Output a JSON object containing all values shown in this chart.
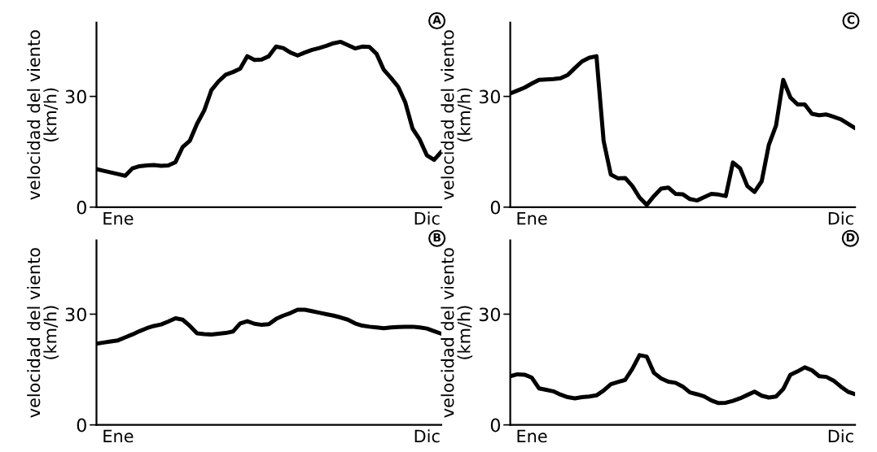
{
  "chart_data": [
    {
      "type": "line",
      "ylabel": "velocidad del viento\n(km/h)",
      "annotations": [
        "A"
      ],
      "categories": [
        null,
        null,
        null,
        "Ene",
        null,
        null,
        null,
        null,
        null,
        null,
        null,
        null,
        null,
        null,
        null,
        null,
        null,
        null,
        null,
        null,
        null,
        null,
        null,
        null,
        null,
        null,
        null,
        null,
        null,
        null,
        null,
        null,
        null,
        null,
        null,
        null,
        null,
        null,
        null,
        null,
        null,
        null,
        null,
        null,
        null,
        null,
        "Dic",
        null,
        null
      ],
      "ylim": [
        0,
        50
      ],
      "yticks": [
        0,
        30
      ],
      "series": [
        {
          "color": "#000000",
          "values": [
            10.3,
            9.85,
            9.4,
            8.95,
            8.5,
            10.5,
            11.1,
            11.3,
            11.4,
            11.2,
            11.3,
            12.2,
            16.3,
            18.0,
            22.6,
            26.2,
            31.7,
            34.1,
            35.9,
            36.6,
            37.5,
            40.9,
            39.9,
            40.0,
            40.9,
            43.5,
            43.1,
            41.9,
            41.1,
            41.9,
            42.6,
            43.1,
            43.7,
            44.4,
            44.8,
            43.9,
            43.0,
            43.5,
            43.4,
            41.5,
            37.2,
            35.0,
            32.6,
            28.3,
            21.3,
            18.3,
            14.0,
            12.8,
            15.0
          ]
        }
      ]
    },
    {
      "type": "line",
      "ylabel": "velocidad del viento\n(km/h)",
      "annotations": [
        "C"
      ],
      "categories": [
        null,
        null,
        null,
        "Ene",
        null,
        null,
        null,
        null,
        null,
        null,
        null,
        null,
        null,
        null,
        null,
        null,
        null,
        null,
        null,
        null,
        null,
        null,
        null,
        null,
        null,
        null,
        null,
        null,
        null,
        null,
        null,
        null,
        null,
        null,
        null,
        null,
        null,
        null,
        null,
        null,
        null,
        null,
        null,
        null,
        null,
        null,
        "Dic",
        null,
        null
      ],
      "ylim": [
        0,
        50
      ],
      "yticks": [
        0,
        30
      ],
      "series": [
        {
          "color": "#000000",
          "values": [
            30.8,
            31.6,
            32.4,
            33.5,
            34.5,
            34.6,
            34.7,
            34.9,
            35.8,
            37.7,
            39.5,
            40.5,
            40.9,
            17.9,
            8.8,
            7.8,
            7.9,
            5.7,
            2.6,
            0.6,
            3.0,
            5.0,
            5.3,
            3.6,
            3.5,
            2.2,
            1.8,
            2.7,
            3.6,
            3.4,
            3.0,
            12.1,
            10.5,
            5.7,
            4.1,
            7.0,
            16.9,
            22.1,
            34.5,
            29.7,
            27.8,
            27.8,
            25.3,
            24.9,
            25.1,
            24.5,
            23.8,
            22.6,
            21.4
          ]
        }
      ]
    },
    {
      "type": "line",
      "ylabel": "velocidad del viento\n(km/h)",
      "annotations": [
        "B"
      ],
      "categories": [
        null,
        null,
        null,
        "Ene",
        null,
        null,
        null,
        null,
        null,
        null,
        null,
        null,
        null,
        null,
        null,
        null,
        null,
        null,
        null,
        null,
        null,
        null,
        null,
        null,
        null,
        null,
        null,
        null,
        null,
        null,
        null,
        null,
        null,
        null,
        null,
        null,
        null,
        null,
        null,
        null,
        null,
        null,
        null,
        null,
        null,
        null,
        "Dic",
        null,
        null
      ],
      "ylim": [
        0,
        50
      ],
      "yticks": [
        0,
        30
      ],
      "series": [
        {
          "color": "#000000",
          "values": [
            22.0,
            22.3,
            22.6,
            22.9,
            23.7,
            24.5,
            25.4,
            26.2,
            26.8,
            27.2,
            28.0,
            28.9,
            28.5,
            26.8,
            24.8,
            24.6,
            24.5,
            24.7,
            24.9,
            25.3,
            27.5,
            28.1,
            27.4,
            27.1,
            27.3,
            28.7,
            29.6,
            30.3,
            31.2,
            31.2,
            30.8,
            30.4,
            30.0,
            29.6,
            29.1,
            28.5,
            27.5,
            26.9,
            26.6,
            26.4,
            26.2,
            26.4,
            26.5,
            26.6,
            26.6,
            26.4,
            26.1,
            25.4,
            24.7
          ]
        }
      ]
    },
    {
      "type": "line",
      "ylabel": "velocidad del viento\n(km/h)",
      "annotations": [
        "D"
      ],
      "categories": [
        null,
        null,
        null,
        "Ene",
        null,
        null,
        null,
        null,
        null,
        null,
        null,
        null,
        null,
        null,
        null,
        null,
        null,
        null,
        null,
        null,
        null,
        null,
        null,
        null,
        null,
        null,
        null,
        null,
        null,
        null,
        null,
        null,
        null,
        null,
        null,
        null,
        null,
        null,
        null,
        null,
        null,
        null,
        null,
        null,
        null,
        null,
        "Dic",
        null,
        null
      ],
      "ylim": [
        0,
        50
      ],
      "yticks": [
        0,
        30
      ],
      "series": [
        {
          "color": "#000000",
          "values": [
            13.2,
            13.7,
            13.6,
            12.8,
            9.9,
            9.5,
            9.1,
            8.2,
            7.5,
            7.2,
            7.5,
            7.7,
            8.0,
            9.3,
            11.0,
            11.6,
            12.2,
            15.2,
            18.9,
            18.5,
            14.1,
            12.6,
            11.7,
            11.4,
            10.4,
            8.8,
            8.3,
            7.7,
            6.6,
            5.9,
            6.0,
            6.5,
            7.2,
            8.1,
            9.0,
            7.9,
            7.4,
            7.7,
            9.7,
            13.6,
            14.5,
            15.6,
            14.8,
            13.2,
            13.0,
            12.0,
            10.4,
            9.0,
            8.3
          ]
        }
      ]
    }
  ]
}
